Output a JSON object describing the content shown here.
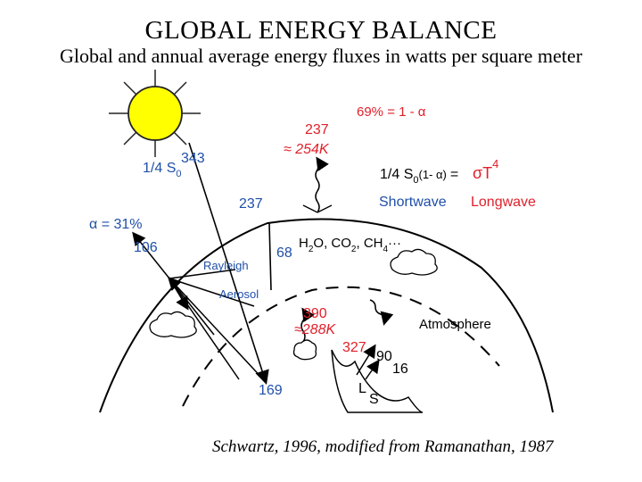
{
  "title": "GLOBAL ENERGY BALANCE",
  "subtitle": "Global and annual average energy fluxes in watts per square meter",
  "credit": "Schwartz, 1996, modified from Ramanathan, 1987",
  "labels": {
    "solar_in_value": "343",
    "solar_in_fraction": "1/4 S",
    "solar_in_sub": "0",
    "absorbed_value": "237",
    "albedo": "α = 31%",
    "reflected_value": "106",
    "rayleigh": "Rayleigh",
    "aerosol": "Aerosol",
    "surface_absorbed": "169",
    "atmos_absorbed": "68",
    "olr_value": "237",
    "olr_temp": "≈ 254K",
    "percent_eq": "69% = 1 - α",
    "balance_lhs": "1/4 S",
    "balance_sub": "0",
    "balance_factor": "(1- α)",
    "balance_eq": "=",
    "balance_rhs": "σT",
    "balance_exp": "4",
    "shortwave": "Shortwave",
    "longwave": "Longwave",
    "gases_h2o": "H",
    "gases_2": "2",
    "gases_o_co": "O, CO",
    "gases_2b": "2",
    "gases_ch": ", CH",
    "gases_4": "4",
    "gases_dots": "···",
    "surface_emit": "390",
    "surface_temp": "≈288K",
    "back_radiation": "327",
    "latent": "90",
    "sensible": "16",
    "atmosphere": "Atmosphere",
    "latent_sym": "L",
    "sensible_sym": "S"
  },
  "colors": {
    "sun_fill": "#ffff00",
    "sun_stroke": "#222222",
    "shortwave_text": "#1f4fa8",
    "longwave_text": "#e0202a"
  }
}
